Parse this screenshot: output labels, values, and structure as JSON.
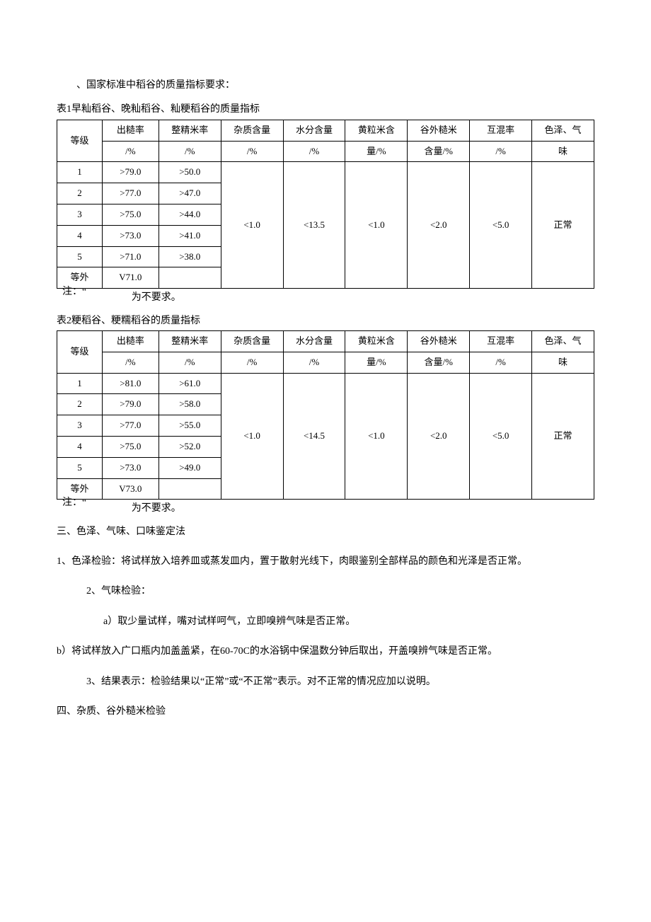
{
  "intro": "、国家标准中稻谷的质量指标要求：",
  "table1": {
    "caption": "表1早籼稻谷、晚籼稻谷、籼粳稻谷的质量指标",
    "headers_line1": [
      "等级",
      "出糙率",
      "整精米率",
      "杂质含量",
      "水分含量",
      "黄粒米含",
      "谷外糙米",
      "互混率",
      "色泽、气"
    ],
    "headers_line2": [
      "",
      "/%",
      "/%",
      "/%",
      "/%",
      "量/%",
      "含量/%",
      "/%",
      "味"
    ],
    "rows": [
      {
        "grade": "1",
        "c1": ">79.0",
        "c2": ">50.0"
      },
      {
        "grade": "2",
        "c1": ">77.0",
        "c2": ">47.0"
      },
      {
        "grade": "3",
        "c1": ">75.0",
        "c2": ">44.0"
      },
      {
        "grade": "4",
        "c1": ">73.0",
        "c2": ">41.0"
      },
      {
        "grade": "5",
        "c1": ">71.0",
        "c2": ">38.0"
      },
      {
        "grade": "等外",
        "c1": "V71.0",
        "c2": ""
      }
    ],
    "merged": {
      "c3": "<1.0",
      "c4": "<13.5",
      "c5": "<1.0",
      "c6": "<2.0",
      "c7": "<5.0",
      "c8": "正常"
    },
    "note_a": "注：“",
    "note_b": "为不要求。"
  },
  "table2": {
    "caption": "表2粳稻谷、粳糯稻谷的质量指标",
    "headers_line1": [
      "等级",
      "出糙率",
      "整精米率",
      "杂质含量",
      "水分含量",
      "黄粒米含",
      "谷外糙米",
      "互混率",
      "色泽、气"
    ],
    "headers_line2": [
      "",
      "/%",
      "/%",
      "/%",
      "/%",
      "量/%",
      "含量/%",
      "/%",
      "味"
    ],
    "rows": [
      {
        "grade": "1",
        "c1": ">81.0",
        "c2": ">61.0"
      },
      {
        "grade": "2",
        "c1": ">79.0",
        "c2": ">58.0"
      },
      {
        "grade": "3",
        "c1": ">77.0",
        "c2": ">55.0"
      },
      {
        "grade": "4",
        "c1": ">75.0",
        "c2": ">52.0"
      },
      {
        "grade": "5",
        "c1": ">73.0",
        "c2": ">49.0"
      },
      {
        "grade": "等外",
        "c1": "V73.0",
        "c2": ""
      }
    ],
    "merged": {
      "c3": "<1.0",
      "c4": "<14.5",
      "c5": "<1.0",
      "c6": "<2.0",
      "c7": "<5.0",
      "c8": "正常"
    },
    "note_a": "注：“",
    "note_b": "为不要求。"
  },
  "section3": {
    "title": "三、色泽、气味、口味鉴定法",
    "p1": "1、色泽检验：将试样放入培养皿或蒸发皿内，置于散射光线下，肉眼鉴别全部样品的颜色和光泽是否正常。",
    "p2": "2、气味检验：",
    "p2a": "a）取少量试样，嘴对试样呵气，立即嗅辨气味是否正常。",
    "p2b": "b）将试样放入广口瓶内加盖盖紧，在60-70C的水浴锅中保温数分钟后取出，开盖嗅辨气味是否正常。",
    "p3": "3、结果表示：检验结果以“正常”或“不正常”表示。对不正常的情况应加以说明。"
  },
  "section4": {
    "title": "四、杂质、谷外糙米检验"
  }
}
